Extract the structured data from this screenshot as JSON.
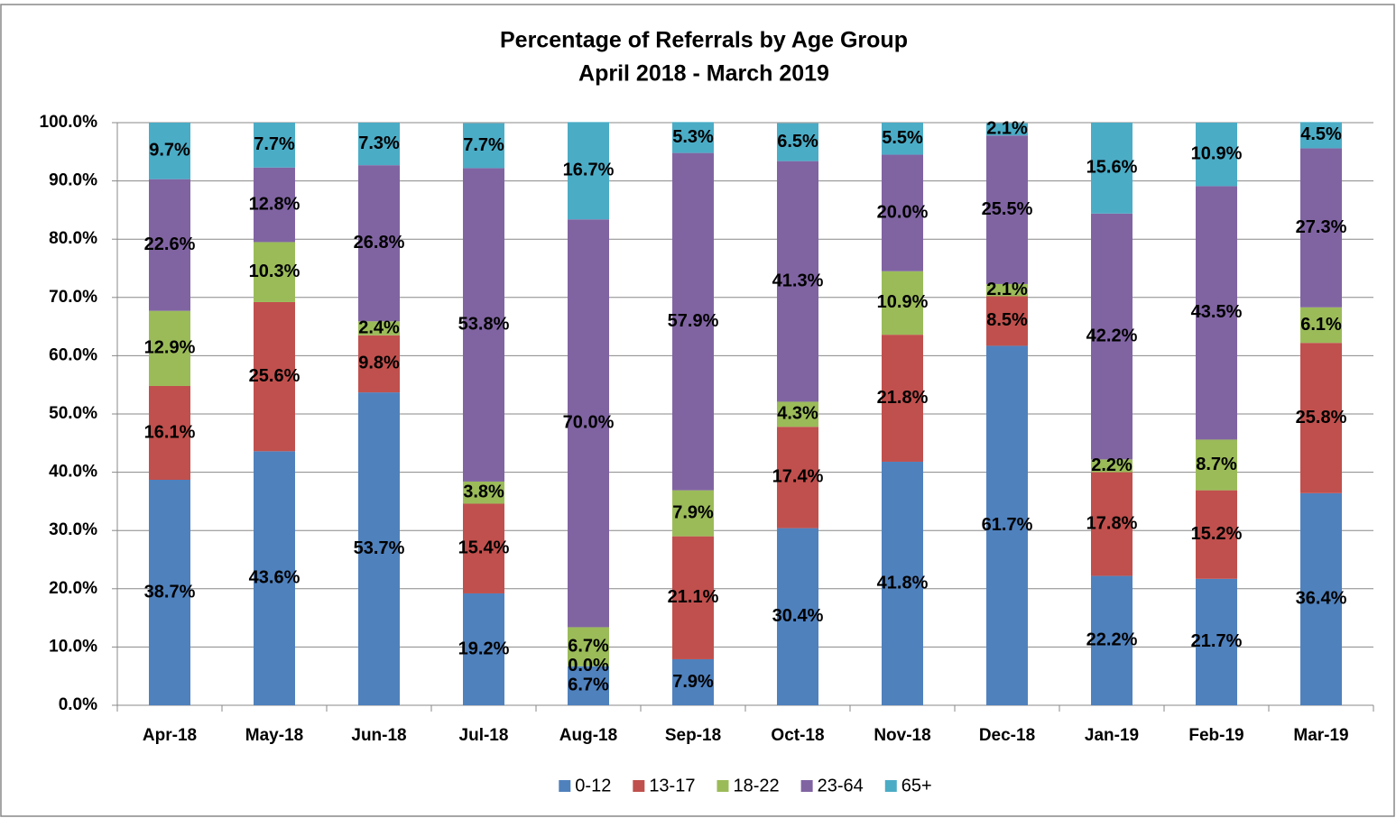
{
  "chart_data": {
    "type": "stacked_bar",
    "title": "Percentage of Referrals by Age Group",
    "subtitle": "April 2018 - March 2019",
    "categories": [
      "Apr-18",
      "May-18",
      "Jun-18",
      "Jul-18",
      "Aug-18",
      "Sep-18",
      "Oct-18",
      "Nov-18",
      "Dec-18",
      "Jan-19",
      "Feb-19",
      "Mar-19"
    ],
    "series": [
      {
        "name": "0-12",
        "color": "#4f81bd",
        "values": [
          38.7,
          43.6,
          53.7,
          19.2,
          6.7,
          7.9,
          30.4,
          41.8,
          61.7,
          22.2,
          21.7,
          36.4
        ],
        "value_labels": [
          "38.7%",
          "43.6%",
          "53.7%",
          "19.2%",
          "6.7%",
          "7.9%",
          "30.4%",
          "41.8%",
          "61.7%",
          "22.2%",
          "21.7%",
          "36.4%"
        ]
      },
      {
        "name": "13-17",
        "color": "#c0504d",
        "values": [
          16.1,
          25.6,
          9.8,
          15.4,
          0.0,
          21.1,
          17.4,
          21.8,
          8.5,
          17.8,
          15.2,
          25.8
        ],
        "value_labels": [
          "16.1%",
          "25.6%",
          "9.8%",
          "15.4%",
          "0.0%",
          "21.1%",
          "17.4%",
          "21.8%",
          "8.5%",
          "17.8%",
          "15.2%",
          "25.8%"
        ]
      },
      {
        "name": "18-22",
        "color": "#9bbb59",
        "values": [
          12.9,
          10.3,
          2.4,
          3.8,
          6.7,
          7.9,
          4.3,
          10.9,
          2.1,
          2.2,
          8.7,
          6.1
        ],
        "value_labels": [
          "12.9%",
          "10.3%",
          "2.4%",
          "3.8%",
          "6.7%",
          "7.9%",
          "4.3%",
          "10.9%",
          "2.1%",
          "2.2%",
          "8.7%",
          "6.1%"
        ]
      },
      {
        "name": "23-64",
        "color": "#8064a2",
        "values": [
          22.6,
          12.8,
          26.8,
          53.8,
          70.0,
          57.9,
          41.3,
          20.0,
          25.5,
          42.2,
          43.5,
          27.3
        ],
        "value_labels": [
          "22.6%",
          "12.8%",
          "26.8%",
          "53.8%",
          "70.0%",
          "57.9%",
          "41.3%",
          "20.0%",
          "25.5%",
          "42.2%",
          "43.5%",
          "27.3%"
        ]
      },
      {
        "name": "65+",
        "color": "#4bacc6",
        "values": [
          9.7,
          7.7,
          7.3,
          7.7,
          16.7,
          5.3,
          6.5,
          5.5,
          2.1,
          15.6,
          10.9,
          4.5
        ],
        "value_labels": [
          "9.7%",
          "7.7%",
          "7.3%",
          "7.7%",
          "16.7%",
          "5.3%",
          "6.5%",
          "5.5%",
          "2.1%",
          "15.6%",
          "10.9%",
          "4.5%"
        ]
      }
    ],
    "ylim": [
      0,
      100
    ],
    "yticks": [
      {
        "value": 0,
        "label": "0.0%"
      },
      {
        "value": 10,
        "label": "10.0%"
      },
      {
        "value": 20,
        "label": "20.0%"
      },
      {
        "value": 30,
        "label": "30.0%"
      },
      {
        "value": 40,
        "label": "40.0%"
      },
      {
        "value": 50,
        "label": "50.0%"
      },
      {
        "value": 60,
        "label": "60.0%"
      },
      {
        "value": 70,
        "label": "70.0%"
      },
      {
        "value": 80,
        "label": "80.0%"
      },
      {
        "value": 90,
        "label": "90.0%"
      },
      {
        "value": 100,
        "label": "100.0%"
      }
    ],
    "grid": true,
    "legend": "bottom"
  }
}
